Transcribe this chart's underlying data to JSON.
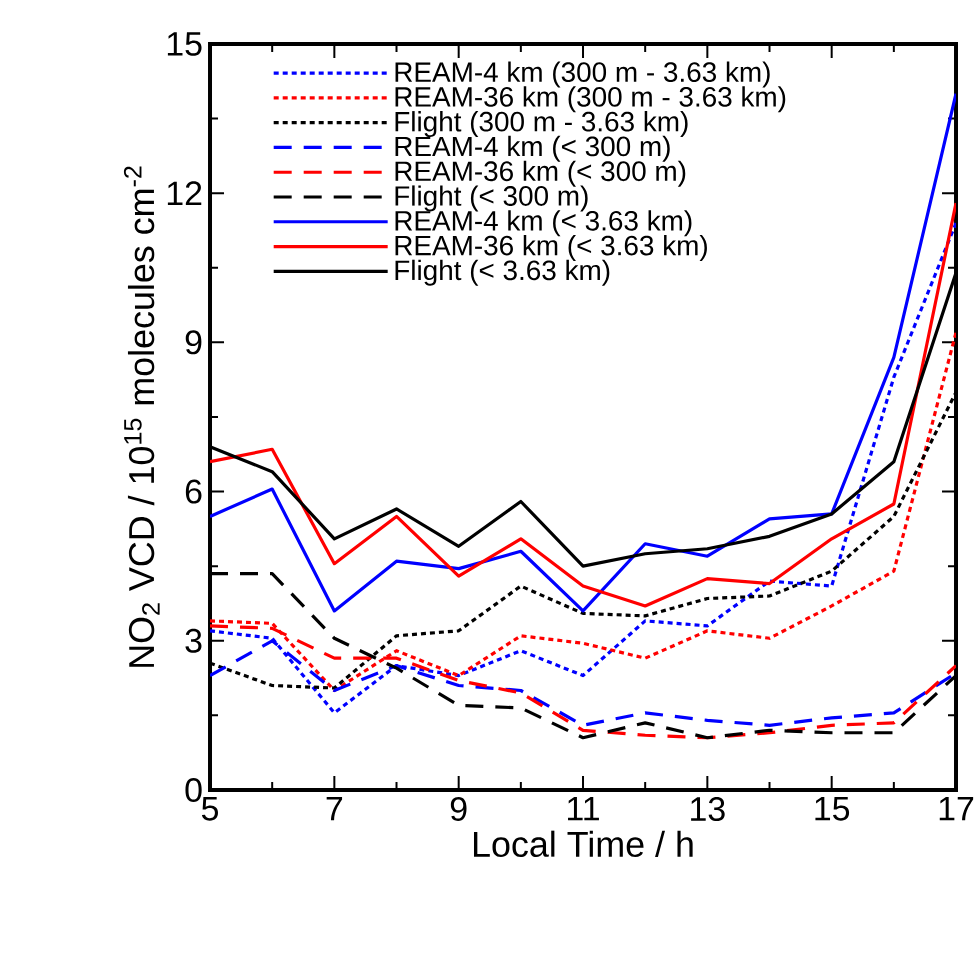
{
  "chart_data": {
    "type": "line",
    "xlabel": "Local Time / h",
    "ylabel": "NO$_{2}$ VCD / 10$^{15}$ molecules cm$^{-2}$",
    "x": [
      5,
      6,
      7,
      8,
      9,
      10,
      11,
      12,
      13,
      14,
      15,
      16,
      17
    ],
    "xlim": [
      5,
      17
    ],
    "xticks": [
      5,
      7,
      9,
      11,
      13,
      15,
      17
    ],
    "ylim": [
      0,
      15
    ],
    "yticks": [
      0,
      3,
      6,
      9,
      12,
      15
    ],
    "legend": "top",
    "grid": false,
    "series": [
      {
        "name": "REAM-4 km (300 m - 3.63 km)",
        "color": "#0000ff",
        "line_style": "dotted",
        "values": [
          3.2,
          3.05,
          1.55,
          2.5,
          2.3,
          2.8,
          2.3,
          3.4,
          3.3,
          4.2,
          4.1,
          8.3,
          11.4
        ]
      },
      {
        "name": "REAM-36 km (300 m - 3.63 km)",
        "color": "#ff0000",
        "line_style": "dotted",
        "values": [
          3.4,
          3.35,
          2.0,
          2.8,
          2.3,
          3.1,
          2.95,
          2.65,
          3.2,
          3.05,
          3.7,
          4.4,
          9.2
        ]
      },
      {
        "name": "Flight (300 m - 3.63 km)",
        "color": "#000000",
        "line_style": "dotted",
        "values": [
          2.55,
          2.1,
          2.05,
          3.1,
          3.2,
          4.1,
          3.55,
          3.5,
          3.85,
          3.9,
          4.4,
          5.5,
          8.0
        ]
      },
      {
        "name": "REAM-4 km (< 300 m)",
        "color": "#0000ff",
        "line_style": "dashed",
        "values": [
          2.3,
          3.0,
          2.0,
          2.5,
          2.1,
          2.0,
          1.3,
          1.55,
          1.4,
          1.3,
          1.45,
          1.55,
          2.35
        ]
      },
      {
        "name": "REAM-36 km (< 300 m)",
        "color": "#ff0000",
        "line_style": "dashed",
        "values": [
          3.3,
          3.25,
          2.65,
          2.65,
          2.2,
          1.95,
          1.2,
          1.1,
          1.05,
          1.15,
          1.3,
          1.35,
          2.5
        ]
      },
      {
        "name": "Flight (< 300 m)",
        "color": "#000000",
        "line_style": "dashed",
        "values": [
          4.35,
          4.35,
          3.05,
          2.45,
          1.7,
          1.65,
          1.05,
          1.35,
          1.05,
          1.2,
          1.15,
          1.15,
          2.3
        ]
      },
      {
        "name": "REAM-4 km (< 3.63 km)",
        "color": "#0000ff",
        "line_style": "solid",
        "values": [
          5.5,
          6.05,
          3.6,
          4.6,
          4.45,
          4.8,
          3.6,
          4.95,
          4.7,
          5.45,
          5.55,
          8.7,
          14.0
        ]
      },
      {
        "name": "REAM-36 km (< 3.63 km)",
        "color": "#ff0000",
        "line_style": "solid",
        "values": [
          6.6,
          6.85,
          4.55,
          5.5,
          4.3,
          5.05,
          4.1,
          3.7,
          4.25,
          4.15,
          5.05,
          5.75,
          11.8
        ]
      },
      {
        "name": "Flight (< 3.63 km)",
        "color": "#000000",
        "line_style": "solid",
        "values": [
          6.9,
          6.4,
          5.05,
          5.65,
          4.9,
          5.8,
          4.5,
          4.75,
          4.85,
          5.1,
          5.55,
          6.6,
          10.4
        ]
      }
    ]
  }
}
